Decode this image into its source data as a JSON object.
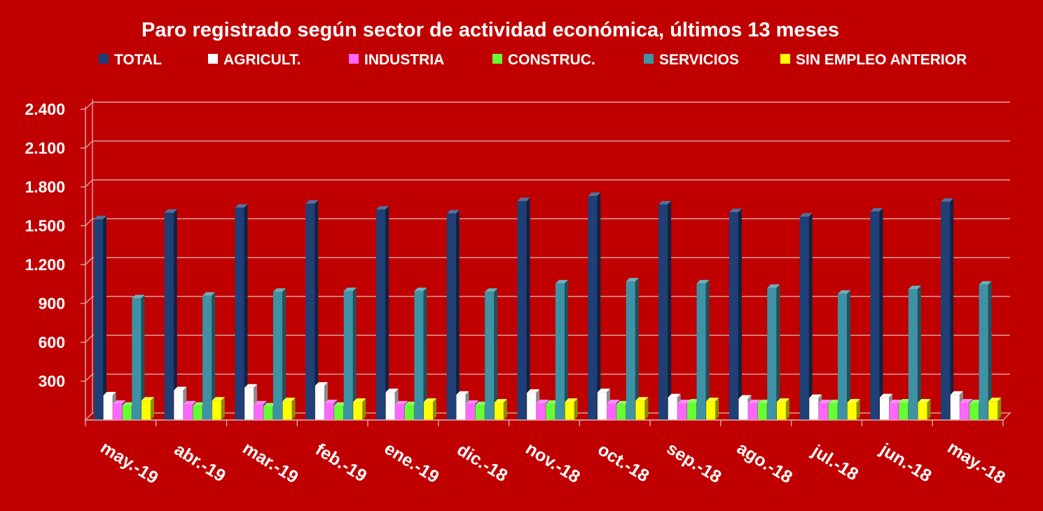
{
  "chart_data": {
    "type": "bar",
    "title": "Paro registrado según sector de actividad económica, últimos 13 meses",
    "xlabel": "",
    "ylabel": "",
    "ylim": [
      0,
      2400
    ],
    "yticks": [
      "2.400",
      "2.100",
      "1.800",
      "1.500",
      "1.200",
      "900",
      "600",
      "300"
    ],
    "ytick_values": [
      2400,
      2100,
      1800,
      1500,
      1200,
      900,
      600,
      300
    ],
    "grid": true,
    "legend_position": "top",
    "categories": [
      "may.-19",
      "abr.-19",
      "mar.-19",
      "feb.-19",
      "ene.-19",
      "dic.-18",
      "nov.-18",
      "oct.-18",
      "sep.-18",
      "ago.-18",
      "jul.-18",
      "jun.-18",
      "may.-18"
    ],
    "series": [
      {
        "name": "TOTAL",
        "color": "#1f3f77",
        "values": [
          1550,
          1600,
          1640,
          1670,
          1625,
          1595,
          1690,
          1730,
          1665,
          1605,
          1570,
          1610,
          1685
        ]
      },
      {
        "name": "AGRICULT.",
        "color": "#ffffff",
        "values": [
          190,
          230,
          250,
          265,
          215,
          195,
          210,
          215,
          175,
          165,
          170,
          175,
          195
        ]
      },
      {
        "name": "INDUSTRIA",
        "color": "#ff66ff",
        "values": [
          125,
          120,
          120,
          130,
          120,
          125,
          130,
          130,
          130,
          130,
          130,
          130,
          135
        ]
      },
      {
        "name": "CONSTRUC.",
        "color": "#66ff33",
        "values": [
          110,
          110,
          105,
          110,
          115,
          115,
          125,
          120,
          135,
          130,
          130,
          135,
          130
        ]
      },
      {
        "name": "SERVICIOS",
        "color": "#3d93a5",
        "values": [
          940,
          960,
          990,
          995,
          995,
          990,
          1055,
          1070,
          1055,
          1020,
          975,
          1010,
          1045
        ]
      },
      {
        "name": "SIN EMPLEO ANTERIOR",
        "color": "#ffff00",
        "values": [
          150,
          150,
          145,
          140,
          140,
          135,
          140,
          150,
          145,
          140,
          135,
          135,
          145
        ]
      }
    ]
  }
}
